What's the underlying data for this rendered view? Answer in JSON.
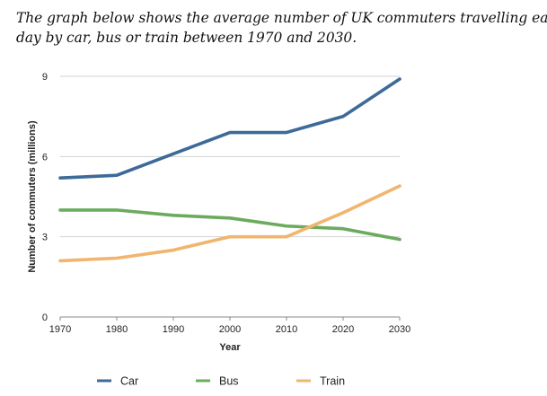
{
  "caption": {
    "line1": "The graph below shows the average number of UK commuters travelling each",
    "line2": "day by car, bus or train between 1970 and 2030."
  },
  "chart_data": {
    "type": "line",
    "x": [
      1970,
      1980,
      1990,
      2000,
      2010,
      2020,
      2030
    ],
    "x_ticks": [
      "1970",
      "1980",
      "1990",
      "2000",
      "2010",
      "2020",
      "2030"
    ],
    "xlabel": "Year",
    "ylabel": "Number of commuters (millions)",
    "ylim": [
      0,
      9
    ],
    "y_ticks": [
      0,
      3,
      6,
      9
    ],
    "grid": "horizontal",
    "legend_position": "bottom",
    "series": [
      {
        "name": "Car",
        "color": "#3d6a98",
        "values": [
          5.2,
          5.3,
          6.1,
          6.9,
          6.9,
          7.5,
          8.9
        ]
      },
      {
        "name": "Bus",
        "color": "#6aab5e",
        "values": [
          4.0,
          4.0,
          3.8,
          3.7,
          3.4,
          3.3,
          2.9
        ]
      },
      {
        "name": "Train",
        "color": "#f0b56e",
        "values": [
          2.1,
          2.2,
          2.5,
          3.0,
          3.0,
          3.9,
          4.9
        ]
      }
    ]
  }
}
